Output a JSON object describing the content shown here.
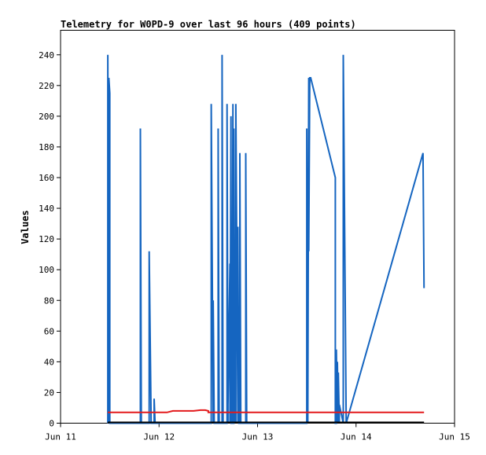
{
  "chart_data": {
    "type": "line",
    "title": "Telemetry for W0PD-9 over last 96 hours (409 points)",
    "xlabel": "",
    "ylabel": "Values",
    "x_ticks": [
      "Jun 11",
      "Jun 12",
      "Jun 13",
      "Jun 14",
      "Jun 15"
    ],
    "y_ticks": [
      0,
      20,
      40,
      60,
      80,
      100,
      120,
      140,
      160,
      180,
      200,
      220,
      240
    ],
    "xlim": [
      0,
      4
    ],
    "ylim": [
      0,
      256
    ],
    "grid": false,
    "colors": {
      "blue": "#1565c0",
      "red": "#e31a1c",
      "black": "#000000",
      "axis": "#000000"
    },
    "series": [
      {
        "color": "#1565c0",
        "x": [
          0.48,
          0.48,
          0.49,
          0.49,
          0.5,
          0.5,
          0.51,
          0.8,
          0.81,
          0.81,
          0.82,
          0.9,
          0.9,
          0.92,
          0.95,
          0.95,
          0.96,
          0.96,
          0.97,
          0.97,
          1.53,
          1.53,
          1.55,
          1.55,
          1.56,
          1.56,
          1.6,
          1.6,
          1.61,
          1.61,
          1.64,
          1.64,
          1.65,
          1.65,
          1.69,
          1.69,
          1.7,
          1.7,
          1.72,
          1.72,
          1.73,
          1.73,
          1.74,
          1.74,
          1.75,
          1.75,
          1.76,
          1.76,
          1.77,
          1.77,
          1.78,
          1.78,
          1.8,
          1.8,
          1.81,
          1.81,
          1.82,
          1.82,
          1.83,
          1.83,
          1.88,
          1.88,
          1.89,
          1.89,
          1.92,
          1.92,
          1.93,
          1.93,
          2.5,
          2.5,
          2.51,
          2.51,
          2.52,
          2.52,
          2.53,
          2.53,
          2.54,
          2.54,
          2.79,
          2.79,
          2.8,
          2.8,
          2.81,
          2.81,
          2.82,
          2.82,
          2.83,
          2.83,
          2.87,
          2.87,
          2.9,
          3.68,
          3.68,
          3.69
        ],
        "y": [
          0,
          240,
          0,
          225,
          215,
          0,
          0,
          0,
          0,
          192,
          0,
          0,
          112,
          0,
          0,
          16,
          0,
          0,
          0,
          0,
          0,
          208,
          0,
          80,
          0,
          0,
          0,
          192,
          0,
          0,
          0,
          240,
          0,
          0,
          0,
          208,
          0,
          12,
          104,
          0,
          200,
          0,
          0,
          0,
          208,
          0,
          0,
          192,
          0,
          40,
          0,
          208,
          0,
          128,
          0,
          0,
          0,
          176,
          0,
          0,
          0,
          176,
          0,
          0,
          0,
          0,
          0,
          0,
          0,
          192,
          0,
          0,
          225,
          112,
          225,
          225,
          225,
          225,
          160,
          0,
          0,
          48,
          0,
          40,
          0,
          33,
          0,
          12,
          0,
          240,
          0,
          176,
          176,
          88
        ]
      },
      {
        "color": "#e31a1c",
        "x": [
          0.48,
          0.55,
          0.62,
          0.7,
          0.78,
          0.86,
          0.94,
          0.96,
          1.0,
          1.08,
          1.14,
          1.16,
          1.22,
          1.28,
          1.35,
          1.42,
          1.47,
          1.5,
          1.5,
          1.56,
          1.8,
          2.2,
          2.6,
          3.0,
          3.4,
          3.69
        ],
        "y": [
          7,
          7,
          7,
          7,
          7,
          7,
          7,
          7,
          7,
          7,
          8,
          8,
          8,
          8,
          8,
          8.5,
          8.5,
          8,
          7,
          7,
          7,
          7,
          7,
          7,
          7,
          7
        ]
      },
      {
        "color": "#000000",
        "x": [
          0.48,
          1.0,
          2.0,
          3.0,
          3.69
        ],
        "y": [
          0.5,
          0.5,
          0.5,
          0.5,
          0.5
        ]
      }
    ]
  }
}
